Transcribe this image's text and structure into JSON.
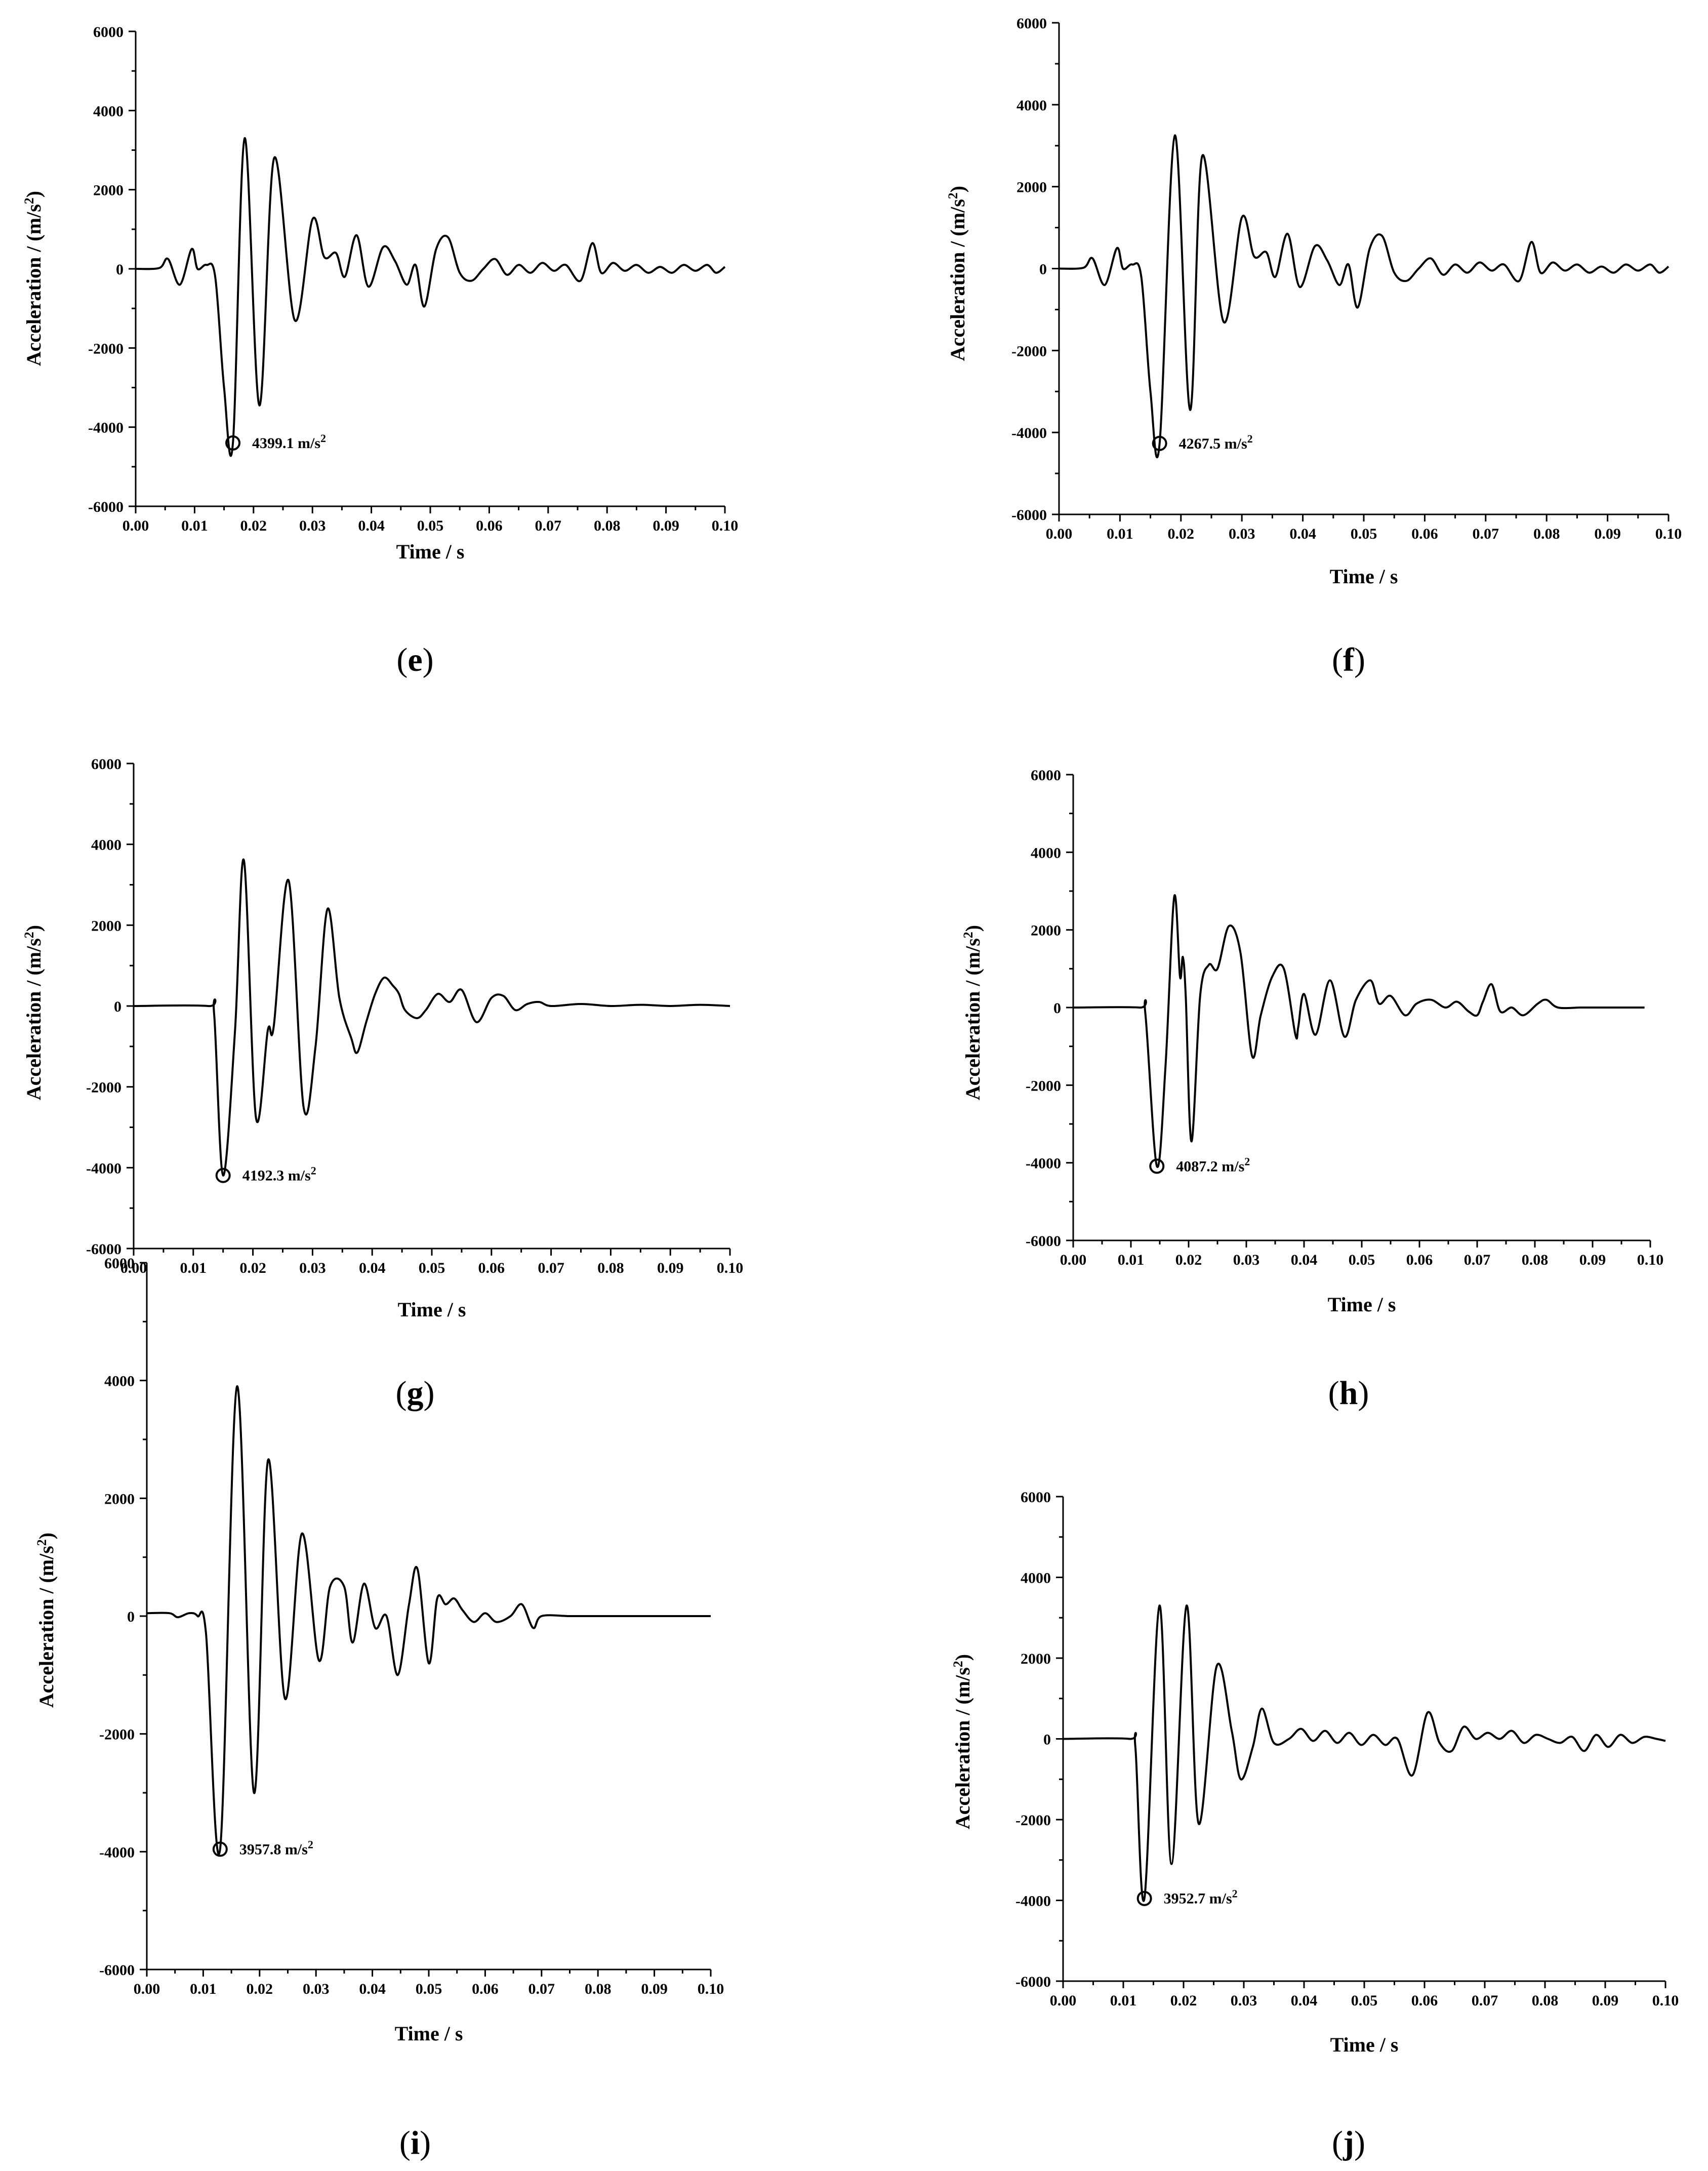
{
  "figure": {
    "panels": [
      {
        "id": "e",
        "label_open": "(",
        "label_letter": "e",
        "label_close": ")"
      },
      {
        "id": "f",
        "label_open": "(",
        "label_letter": "f",
        "label_close": ")"
      },
      {
        "id": "g",
        "label_open": "(",
        "label_letter": "g",
        "label_close": ")"
      },
      {
        "id": "h",
        "label_open": "(",
        "label_letter": "h",
        "label_close": ")"
      },
      {
        "id": "i",
        "label_open": "(",
        "label_letter": "i",
        "label_close": ")"
      },
      {
        "id": "j",
        "label_open": "(",
        "label_letter": "j",
        "label_close": ")"
      }
    ]
  },
  "chart_data": [
    {
      "panel": "e",
      "type": "line",
      "xlabel": "Time / s",
      "ylabel_main": "Acceleration / (m/s",
      "ylabel_sup": "2",
      "ylabel_end": ")",
      "xlim": [
        0,
        0.1
      ],
      "ylim": [
        -6000,
        6000
      ],
      "xticks": [
        "0.00",
        "0.01",
        "0.02",
        "0.03",
        "0.04",
        "0.05",
        "0.06",
        "0.07",
        "0.08",
        "0.09",
        "0.10"
      ],
      "yticks": [
        "-6000",
        "-4000",
        "-2000",
        "0",
        "2000",
        "4000",
        "6000"
      ],
      "grid": false,
      "line_color": "#000000",
      "annotation": {
        "x": 0.0165,
        "y": -4399.1,
        "text": "4399.1 m/s",
        "sup": "2"
      },
      "series": [
        {
          "x": [
            0,
            0.004,
            0.0055,
            0.0075,
            0.0095,
            0.0105,
            0.012,
            0.0135,
            0.015,
            0.0165,
            0.0185,
            0.021,
            0.0235,
            0.027,
            0.03,
            0.032,
            0.034,
            0.0355,
            0.0375,
            0.0395,
            0.042,
            0.044,
            0.046,
            0.0475,
            0.049,
            0.051,
            0.053,
            0.055,
            0.057,
            0.059,
            0.061,
            0.063,
            0.065,
            0.067,
            0.069,
            0.071,
            0.073,
            0.0755,
            0.0775,
            0.079,
            0.081,
            0.083,
            0.085,
            0.087,
            0.089,
            0.091,
            0.093,
            0.095,
            0.097,
            0.0985,
            0.1
          ],
          "y": [
            0,
            20,
            250,
            -400,
            500,
            0,
            100,
            -200,
            -3000,
            -4399.1,
            3300,
            -3450,
            2800,
            -1300,
            1250,
            300,
            400,
            -200,
            850,
            -450,
            550,
            200,
            -400,
            100,
            -950,
            500,
            800,
            -100,
            -300,
            0,
            250,
            -150,
            100,
            -100,
            150,
            -50,
            100,
            -300,
            650,
            -100,
            150,
            -50,
            100,
            -100,
            50,
            -100,
            100,
            -50,
            100,
            -100,
            50
          ]
        }
      ]
    },
    {
      "panel": "f",
      "type": "line",
      "xlabel": "Time / s",
      "ylabel_main": "Acceleration / (m/s",
      "ylabel_sup": "2",
      "ylabel_end": ")",
      "xlim": [
        0,
        0.1
      ],
      "ylim": [
        -6000,
        6000
      ],
      "xticks": [
        "0.00",
        "0.01",
        "0.02",
        "0.03",
        "0.04",
        "0.05",
        "0.06",
        "0.07",
        "0.08",
        "0.09",
        "0.10"
      ],
      "yticks": [
        "-6000",
        "-4000",
        "-2000",
        "0",
        "2000",
        "4000",
        "6000"
      ],
      "grid": false,
      "line_color": "#000000",
      "annotation": {
        "x": 0.0165,
        "y": -4267.5,
        "text": "4267.5 m/s",
        "sup": "2"
      },
      "series": [
        {
          "x": [
            0,
            0.004,
            0.0055,
            0.0075,
            0.0095,
            0.0105,
            0.012,
            0.0135,
            0.015,
            0.0165,
            0.019,
            0.0215,
            0.0235,
            0.027,
            0.03,
            0.032,
            0.034,
            0.0355,
            0.0375,
            0.0395,
            0.042,
            0.044,
            0.046,
            0.0475,
            0.049,
            0.051,
            0.053,
            0.055,
            0.057,
            0.059,
            0.061,
            0.063,
            0.065,
            0.067,
            0.069,
            0.071,
            0.073,
            0.0755,
            0.0775,
            0.079,
            0.081,
            0.083,
            0.085,
            0.087,
            0.089,
            0.091,
            0.093,
            0.095,
            0.097,
            0.0985,
            0.1
          ],
          "y": [
            0,
            20,
            250,
            -400,
            500,
            0,
            100,
            -200,
            -3000,
            -4267.5,
            3250,
            -3450,
            2750,
            -1300,
            1250,
            300,
            400,
            -200,
            850,
            -450,
            550,
            200,
            -400,
            100,
            -950,
            500,
            800,
            -100,
            -300,
            0,
            250,
            -150,
            100,
            -100,
            150,
            -50,
            100,
            -300,
            650,
            -100,
            150,
            -50,
            100,
            -100,
            50,
            -100,
            100,
            -50,
            100,
            -100,
            50
          ]
        }
      ]
    },
    {
      "panel": "g",
      "type": "line",
      "xlabel": "Time / s",
      "ylabel_main": "Acceleration / (m/s",
      "ylabel_sup": "2",
      "ylabel_end": ")",
      "xlim": [
        0,
        0.1
      ],
      "ylim": [
        -6000,
        6000
      ],
      "xticks": [
        "0.00",
        "0.01",
        "0.02",
        "0.03",
        "0.04",
        "0.05",
        "0.06",
        "0.07",
        "0.08",
        "0.09",
        "0.10"
      ],
      "yticks": [
        "-6000",
        "-4000",
        "-2000",
        "0",
        "2000",
        "4000",
        "6000"
      ],
      "grid": false,
      "line_color": "#000000",
      "annotation": {
        "x": 0.015,
        "y": -4192.3,
        "text": "4192.3 m/s",
        "sup": "2"
      },
      "series": [
        {
          "x": [
            0,
            0.0125,
            0.0135,
            0.015,
            0.017,
            0.0185,
            0.0205,
            0.0225,
            0.0235,
            0.026,
            0.0285,
            0.0305,
            0.0325,
            0.0345,
            0.0365,
            0.0375,
            0.039,
            0.0405,
            0.042,
            0.0435,
            0.0445,
            0.0455,
            0.0475,
            0.049,
            0.051,
            0.053,
            0.055,
            0.0575,
            0.06,
            0.062,
            0.064,
            0.066,
            0.068,
            0.07,
            0.075,
            0.08,
            0.085,
            0.09,
            0.095,
            0.1
          ],
          "y": [
            0,
            0,
            -200,
            -4192.3,
            -600,
            3600,
            -2750,
            -600,
            -500,
            3100,
            -2500,
            -1000,
            2400,
            200,
            -800,
            -1150,
            -400,
            300,
            700,
            500,
            300,
            -100,
            -300,
            -100,
            300,
            100,
            400,
            -400,
            200,
            250,
            -100,
            50,
            100,
            0,
            50,
            0,
            30,
            0,
            30,
            0
          ]
        }
      ]
    },
    {
      "panel": "h",
      "type": "line",
      "xlabel": "Time / s",
      "ylabel_main": "Acceleration / (m/s",
      "ylabel_sup": "2",
      "ylabel_end": ")",
      "xlim": [
        0,
        0.1
      ],
      "ylim": [
        -6000,
        6000
      ],
      "xticks": [
        "0.00",
        "0.01",
        "0.02",
        "0.03",
        "0.04",
        "0.05",
        "0.06",
        "0.07",
        "0.08",
        "0.09",
        "0.10"
      ],
      "yticks": [
        "-6000",
        "-4000",
        "-2000",
        "0",
        "2000",
        "4000",
        "6000"
      ],
      "grid": false,
      "line_color": "#000000",
      "annotation": {
        "x": 0.0145,
        "y": -4087.2,
        "text": "4087.2 m/s",
        "sup": "2"
      },
      "series": [
        {
          "x": [
            0,
            0.0115,
            0.0125,
            0.0145,
            0.016,
            0.0175,
            0.0185,
            0.019,
            0.0195,
            0.0205,
            0.022,
            0.0235,
            0.025,
            0.027,
            0.029,
            0.031,
            0.0325,
            0.0345,
            0.0365,
            0.0385,
            0.039,
            0.04,
            0.042,
            0.0445,
            0.047,
            0.049,
            0.0515,
            0.053,
            0.055,
            0.0575,
            0.0595,
            0.062,
            0.0645,
            0.0665,
            0.0685,
            0.07,
            0.071,
            0.0725,
            0.074,
            0.076,
            0.078,
            0.0805,
            0.082,
            0.084,
            0.088,
            0.092,
            0.096,
            0.099
          ],
          "y": [
            0,
            0,
            -150,
            -4087.2,
            -1500,
            2850,
            800,
            1300,
            300,
            -3450,
            300,
            1100,
            1000,
            2100,
            1400,
            -1250,
            -200,
            800,
            1000,
            -700,
            -500,
            350,
            -700,
            700,
            -750,
            200,
            700,
            100,
            300,
            -200,
            100,
            200,
            0,
            150,
            -100,
            -200,
            150,
            600,
            -100,
            0,
            -200,
            100,
            200,
            0,
            0,
            0,
            0,
            0
          ]
        }
      ]
    },
    {
      "panel": "i",
      "type": "line",
      "xlabel": "Time / s",
      "ylabel_main": "Acceleration / (m/s",
      "ylabel_sup": "2",
      "ylabel_end": ")",
      "xlim": [
        0,
        0.1
      ],
      "ylim": [
        -6000,
        6000
      ],
      "xticks": [
        "0.00",
        "0.01",
        "0.02",
        "0.03",
        "0.04",
        "0.05",
        "0.06",
        "0.07",
        "0.08",
        "0.09",
        "0.10"
      ],
      "yticks": [
        "-6000",
        "-4000",
        "-2000",
        "0",
        "2000",
        "4000",
        "6000"
      ],
      "grid": false,
      "line_color": "#000000",
      "annotation": {
        "x": 0.013,
        "y": -3957.8,
        "text": "3957.8 m/s",
        "sup": "2"
      },
      "series": [
        {
          "x": [
            0,
            0.004,
            0.0055,
            0.0075,
            0.009,
            0.0105,
            0.013,
            0.016,
            0.019,
            0.0215,
            0.0245,
            0.0275,
            0.0305,
            0.0325,
            0.035,
            0.0365,
            0.0385,
            0.0405,
            0.0425,
            0.0445,
            0.0465,
            0.048,
            0.05,
            0.0515,
            0.053,
            0.0545,
            0.056,
            0.058,
            0.06,
            0.062,
            0.0645,
            0.0665,
            0.0685,
            0.07,
            0.075,
            0.08,
            0.085,
            0.09,
            0.095,
            0.1
          ],
          "y": [
            50,
            50,
            -20,
            50,
            0,
            -300,
            -3957.8,
            3900,
            -3000,
            2650,
            -1400,
            1400,
            -750,
            500,
            500,
            -450,
            550,
            -200,
            0,
            -1000,
            200,
            800,
            -800,
            300,
            200,
            300,
            100,
            -100,
            50,
            -100,
            0,
            200,
            -200,
            0,
            0,
            0,
            0,
            0,
            0,
            0
          ]
        }
      ]
    },
    {
      "panel": "j",
      "type": "line",
      "xlabel": "Time / s",
      "ylabel_main": "Acceleration / (m/s",
      "ylabel_sup": "2",
      "ylabel_end": ")",
      "xlim": [
        0,
        0.1
      ],
      "ylim": [
        -6000,
        6000
      ],
      "xticks": [
        "0.00",
        "0.01",
        "0.02",
        "0.03",
        "0.04",
        "0.05",
        "0.06",
        "0.07",
        "0.08",
        "0.09",
        "0.10"
      ],
      "yticks": [
        "-6000",
        "-4000",
        "-2000",
        "0",
        "2000",
        "4000",
        "6000"
      ],
      "grid": false,
      "line_color": "#000000",
      "annotation": {
        "x": 0.0135,
        "y": -3952.7,
        "text": "3952.7 m/s",
        "sup": "2"
      },
      "series": [
        {
          "x": [
            0,
            0.011,
            0.012,
            0.0135,
            0.016,
            0.018,
            0.0205,
            0.0225,
            0.0255,
            0.028,
            0.0295,
            0.0315,
            0.033,
            0.035,
            0.0375,
            0.0395,
            0.0415,
            0.0435,
            0.0455,
            0.0475,
            0.0495,
            0.0515,
            0.0535,
            0.0555,
            0.058,
            0.0605,
            0.0625,
            0.0645,
            0.0665,
            0.0685,
            0.0705,
            0.0725,
            0.0745,
            0.0765,
            0.0785,
            0.0805,
            0.0825,
            0.0845,
            0.0865,
            0.0885,
            0.0905,
            0.0925,
            0.0945,
            0.0965,
            0.0985,
            0.1
          ],
          "y": [
            0,
            0,
            -200,
            -3952.7,
            3300,
            -3100,
            3300,
            -2100,
            1800,
            200,
            -1000,
            -200,
            750,
            -100,
            0,
            250,
            -50,
            200,
            -100,
            150,
            -150,
            100,
            -150,
            0,
            -900,
            650,
            -100,
            -300,
            300,
            0,
            150,
            0,
            200,
            -100,
            100,
            0,
            -100,
            50,
            -300,
            100,
            -200,
            100,
            -100,
            50,
            0,
            -50
          ]
        }
      ]
    }
  ]
}
